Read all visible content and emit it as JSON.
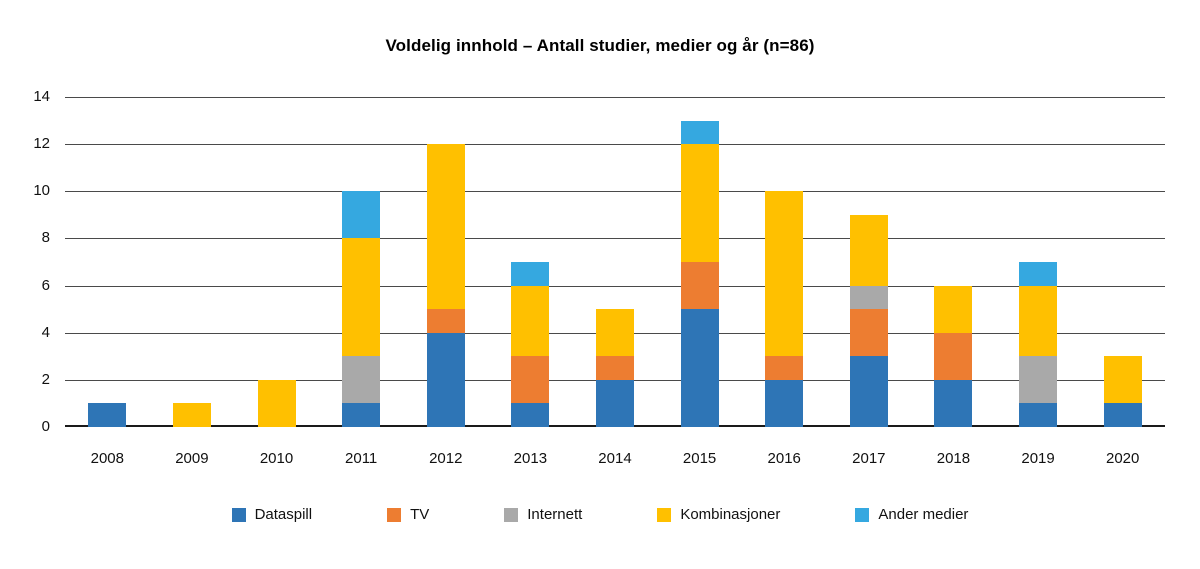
{
  "chart_data": {
    "type": "bar",
    "stacked": true,
    "title": "Voldelig innhold – Antall studier, medier og år (n=86)",
    "xlabel": "",
    "ylabel": "",
    "ylim": [
      0,
      14
    ],
    "ytick_step": 2,
    "grid": true,
    "legend_position": "bottom",
    "categories": [
      "2008",
      "2009",
      "2010",
      "2011",
      "2012",
      "2013",
      "2014",
      "2015",
      "2016",
      "2017",
      "2018",
      "2019",
      "2020"
    ],
    "series": [
      {
        "name": "Dataspill",
        "color": "#2E75B6",
        "values": [
          1,
          0,
          0,
          1,
          4,
          1,
          2,
          5,
          2,
          3,
          2,
          1,
          1
        ]
      },
      {
        "name": "TV",
        "color": "#ED7D31",
        "values": [
          0,
          0,
          0,
          0,
          1,
          2,
          1,
          2,
          1,
          2,
          2,
          0,
          0
        ]
      },
      {
        "name": "Internett",
        "color": "#A9A9A9",
        "values": [
          0,
          0,
          0,
          2,
          0,
          0,
          0,
          0,
          0,
          1,
          0,
          2,
          0
        ]
      },
      {
        "name": "Kombinasjoner",
        "color": "#FFC000",
        "values": [
          0,
          1,
          2,
          5,
          7,
          3,
          2,
          5,
          7,
          3,
          2,
          3,
          2
        ]
      },
      {
        "name": "Ander medier",
        "color": "#35A8E0",
        "values": [
          0,
          0,
          0,
          2,
          0,
          1,
          0,
          1,
          0,
          0,
          0,
          1,
          0
        ]
      }
    ]
  }
}
